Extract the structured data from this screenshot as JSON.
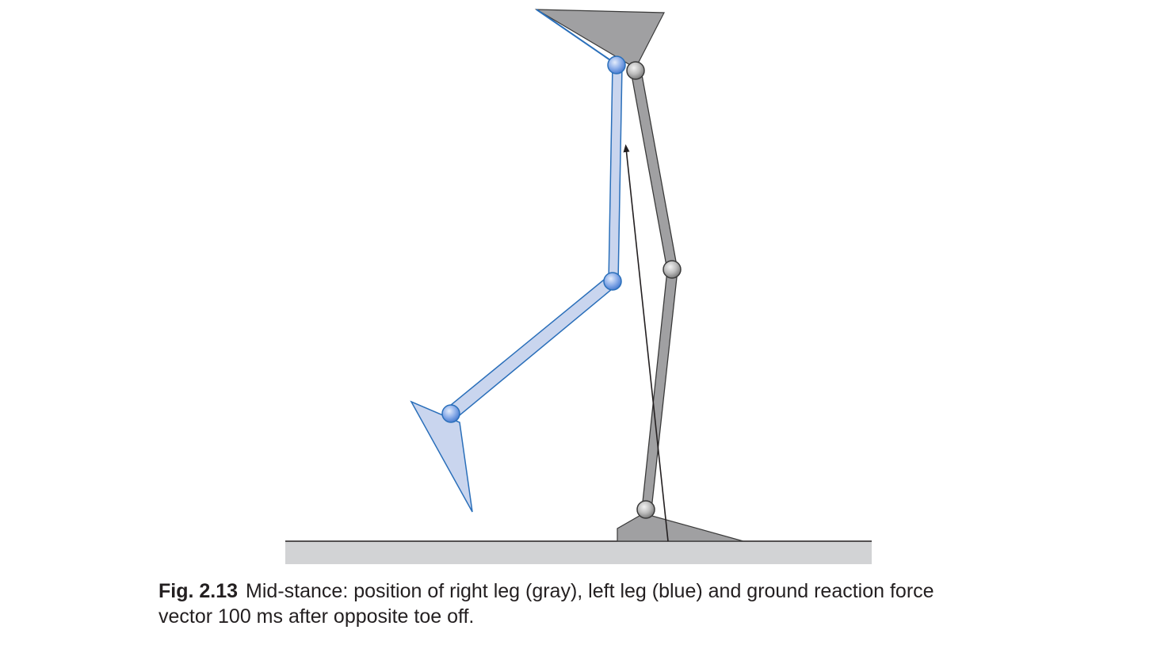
{
  "caption": {
    "label": "Fig. 2.13",
    "text_line1": "Mid-stance: position of right leg (gray), left leg (blue) and ground reaction force",
    "text_line2": "vector 100 ms after opposite toe off."
  },
  "colors": {
    "right_leg_fill": "#a0a0a2",
    "right_leg_stroke": "#3a3a3a",
    "left_leg_fill": "#c9d5ee",
    "left_leg_stroke": "#2a6fba",
    "left_joint_fill": "#7ea2e3",
    "right_joint_fill": "#b7b7b7",
    "ground_fill": "#d2d3d5",
    "force_vector": "#231f20"
  }
}
